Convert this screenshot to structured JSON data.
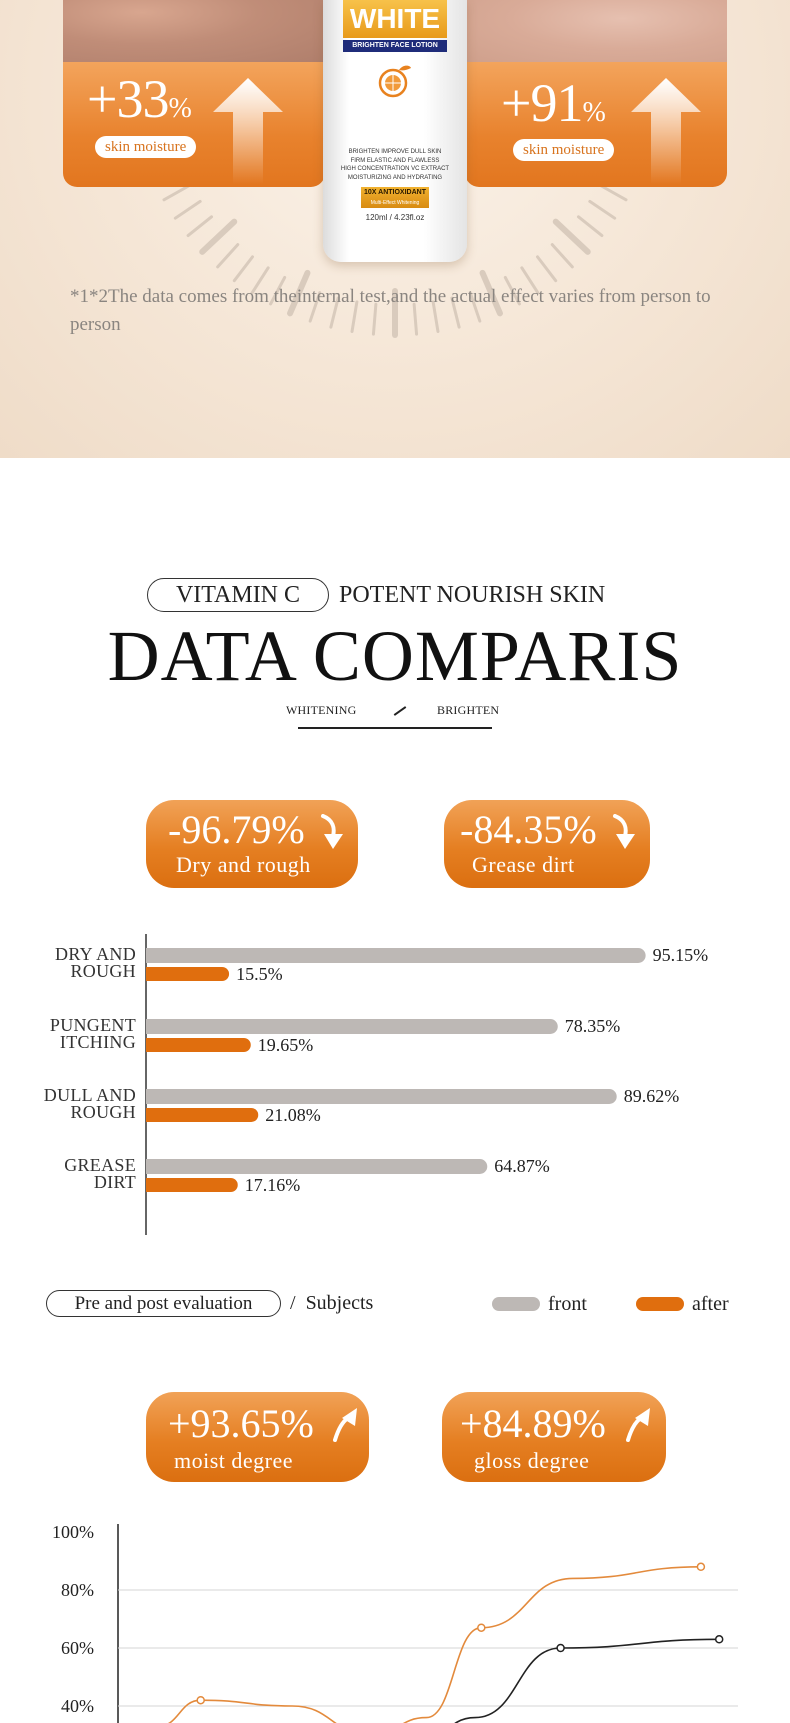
{
  "hero": {
    "left_card": {
      "value": "+33",
      "unit": "%",
      "label": "skin moisture"
    },
    "right_card": {
      "value": "+91",
      "unit": "%",
      "label": "skin moisture"
    },
    "bottle": {
      "brand": "WHITE",
      "subtitle": "BRIGHTEN FACE LOTION",
      "lines": [
        "BRIGHTEN IMPROVE DULL SKIN",
        "FIRM ELASTIC AND FLAWLESS",
        "HIGH CONCENTRATION VC EXTRACT",
        "MOISTURIZING AND HYDRATING"
      ],
      "badge": "10X ANTIOXIDANT",
      "badge_sub": "Multi-Effect Whitening",
      "volume": "120ml / 4.23fl.oz"
    },
    "note": "*1*2The data comes from theinternal test,and the actual effect varies from person to person"
  },
  "section": {
    "pill_text": "VITAMIN C",
    "tagline": "POTENT NOURISH SKIN",
    "title": "DATA COMPARIS",
    "tags": [
      "WHITENING",
      "BRIGHTEN"
    ]
  },
  "stats_top": [
    {
      "value": "-96.79%",
      "label": "Dry and rough"
    },
    {
      "value": "-84.35%",
      "label": "Grease dirt"
    }
  ],
  "legend": {
    "eval_label": "Pre and post evaluation",
    "separator": "/",
    "subjects": "Subjects",
    "front": "front",
    "after": "after"
  },
  "stats_bottom": [
    {
      "value": "+93.65%",
      "label": "moist degree"
    },
    {
      "value": "+84.89%",
      "label": "gloss degree"
    }
  ],
  "colors": {
    "accent": "#e57f22",
    "front_bar": "#bdb8b5",
    "after_bar": "#e06e0e",
    "line_dark": "#222222"
  },
  "chart_data": [
    {
      "type": "bar",
      "orientation": "horizontal",
      "categories": [
        [
          "DRY AND",
          "ROUGH"
        ],
        [
          "PUNGENT",
          "ITCHING"
        ],
        [
          "DULL AND",
          "ROUGH"
        ],
        [
          "GREASE",
          "DIRT"
        ]
      ],
      "series": [
        {
          "name": "front",
          "values": [
            95.15,
            78.35,
            89.62,
            64.87
          ],
          "labels": [
            "95.15%",
            "78.35%",
            "89.62%",
            "64.87%"
          ]
        },
        {
          "name": "after",
          "values": [
            15.5,
            19.65,
            21.08,
            17.16
          ],
          "labels": [
            "15.5%",
            "19.65%",
            "21.08%",
            "17.16%"
          ]
        }
      ],
      "xlim": [
        0,
        100
      ],
      "legend": "bottom-right"
    },
    {
      "type": "line",
      "ytick_labels": [
        "100%",
        "80%",
        "60%",
        "40%"
      ],
      "yticks": [
        100,
        80,
        60,
        40
      ],
      "ylim": [
        20,
        100
      ],
      "x": [
        1,
        2,
        3,
        4,
        5
      ],
      "series": [
        {
          "color": "#e38a3c",
          "points": [
            [
              1.35,
              42
            ],
            [
              3.65,
              67
            ],
            [
              5.45,
              88
            ]
          ]
        },
        {
          "color": "#222222",
          "points": [
            [
              4.3,
              60
            ],
            [
              5.6,
              63
            ]
          ]
        }
      ],
      "grid": true
    }
  ]
}
